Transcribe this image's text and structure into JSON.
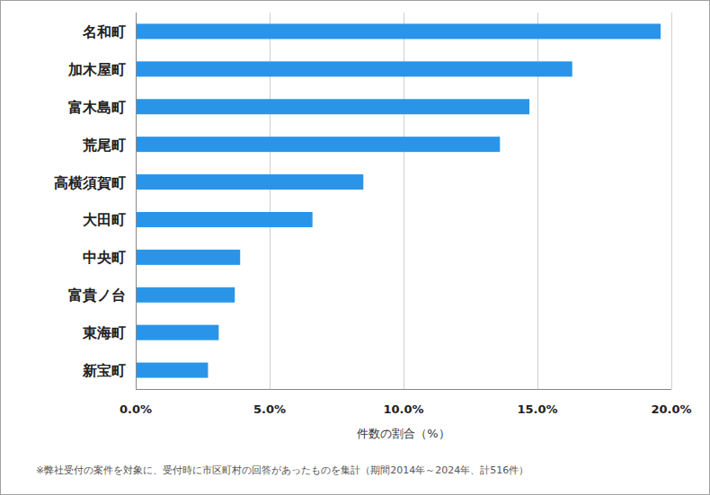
{
  "chart_data": {
    "type": "bar",
    "orientation": "horizontal",
    "categories": [
      "名和町",
      "加木屋町",
      "富木島町",
      "荒尾町",
      "高横須賀町",
      "大田町",
      "中央町",
      "富貴ノ台",
      "東海町",
      "新宝町"
    ],
    "values": [
      19.6,
      16.3,
      14.7,
      13.6,
      8.5,
      6.6,
      3.9,
      3.7,
      3.1,
      2.7
    ],
    "color": "#2a95e8",
    "xlim": [
      0,
      20
    ],
    "xticks": [
      {
        "value": 0,
        "label": "0.0%"
      },
      {
        "value": 5,
        "label": "5.0%"
      },
      {
        "value": 10,
        "label": "10.0%"
      },
      {
        "value": 15,
        "label": "15.0%"
      },
      {
        "value": 20,
        "label": "20.0%"
      }
    ],
    "xlabel": "件数の割合（%）",
    "footnote": "※弊社受付の案件を対象に、受付時に市区町村の回答があったものを集計（期間2014年～2024年、計516件）",
    "grid": true
  }
}
